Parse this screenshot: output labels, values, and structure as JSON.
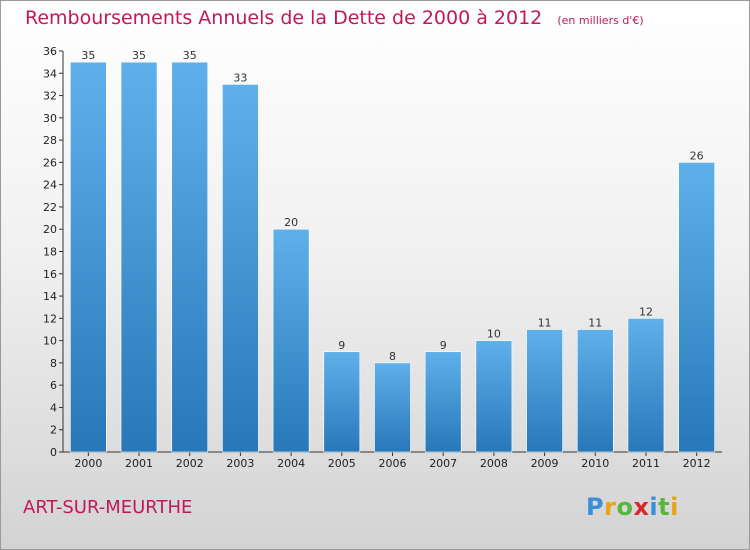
{
  "header": {
    "title": "Remboursements Annuels de la Dette de 2000 à 2012",
    "unit_note": "(en milliers d'€)"
  },
  "footer": {
    "commune": "ART-SUR-MEURTHE",
    "logo": [
      "P",
      "r",
      "o",
      "x",
      "i",
      "t",
      "i"
    ],
    "logo_colors": [
      "#3b8fd6",
      "#e8a317",
      "#57b63d",
      "#d62828",
      "#3b8fd6",
      "#57b63d",
      "#e8a317"
    ]
  },
  "colors": {
    "bar_top": "#5fb0ea",
    "bar_bottom": "#2878b9",
    "title": "#c2185b"
  },
  "chart_data": {
    "type": "bar",
    "categories": [
      "2000",
      "2001",
      "2002",
      "2003",
      "2004",
      "2005",
      "2006",
      "2007",
      "2008",
      "2009",
      "2010",
      "2011",
      "2012"
    ],
    "values": [
      35,
      35,
      35,
      33,
      20,
      9,
      8,
      9,
      10,
      11,
      11,
      12,
      26
    ],
    "ylim": [
      0,
      36
    ],
    "yticks": [
      0,
      2,
      4,
      6,
      8,
      10,
      12,
      14,
      16,
      18,
      20,
      22,
      24,
      26,
      28,
      30,
      32,
      34,
      36
    ],
    "grid": false,
    "legend": "none"
  }
}
